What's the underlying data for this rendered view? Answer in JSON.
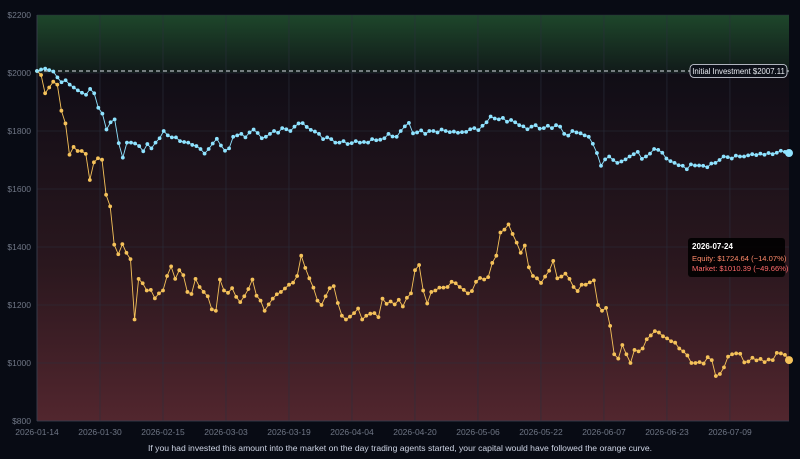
{
  "colors": {
    "background": "#080b14",
    "equity": "#8fe3ff",
    "market": "#f5c25a",
    "grid": "#2a2f3d",
    "tick": "#6f7685",
    "tooltip_date": "#ffffff",
    "tooltip_equity": "#ff8a6a",
    "tooltip_market": "#ff6b6b"
  },
  "caption": "If you had invested this amount into the market on the day trading agents started, your capital would have followed the orange curve.",
  "reference_label": "Initial Investment $2007.11",
  "tooltip": {
    "date": "2026-07-24",
    "equity_text": "Equity: $1724.64 (−14.07%)",
    "market_text": "Market: $1010.39 (−49.66%)"
  },
  "chart_data": {
    "type": "line",
    "title": "",
    "xlabel": "",
    "ylabel": "",
    "ylim": [
      800,
      2200
    ],
    "yticks": [
      800,
      1000,
      1200,
      1400,
      1600,
      1800,
      2000,
      2200
    ],
    "ytick_labels": [
      "$800",
      "$1000",
      "$1200",
      "$1400",
      "$1600",
      "$1800",
      "$2000",
      "$2200"
    ],
    "x_start": "2026-01-14",
    "x_end": "2026-07-24",
    "xticks": [
      "2026-01-14",
      "2026-01-30",
      "2026-02-15",
      "2026-03-03",
      "2026-03-19",
      "2026-04-04",
      "2026-04-20",
      "2026-05-06",
      "2026-05-22",
      "2026-06-07",
      "2026-06-23",
      "2026-07-09"
    ],
    "reference_line": {
      "value": 2007.11,
      "label": "Initial Investment $2007.11"
    },
    "grid": true,
    "background_bands": "green above $2000, red below",
    "series": [
      {
        "name": "Equity",
        "color": "#8fe3ff",
        "values": [
          2007,
          2012,
          2015,
          2010,
          2005,
          1985,
          1968,
          1975,
          1960,
          1950,
          1940,
          1932,
          1925,
          1945,
          1930,
          1880,
          1860,
          1805,
          1830,
          1840,
          1758,
          1708,
          1760,
          1760,
          1757,
          1748,
          1730,
          1755,
          1740,
          1760,
          1775,
          1800,
          1785,
          1778,
          1778,
          1765,
          1762,
          1760,
          1752,
          1748,
          1738,
          1722,
          1738,
          1757,
          1773,
          1750,
          1732,
          1740,
          1780,
          1785,
          1790,
          1778,
          1795,
          1805,
          1793,
          1775,
          1780,
          1790,
          1800,
          1794,
          1810,
          1806,
          1800,
          1815,
          1826,
          1827,
          1814,
          1804,
          1798,
          1790,
          1772,
          1778,
          1772,
          1760,
          1760,
          1765,
          1755,
          1758,
          1765,
          1760,
          1762,
          1760,
          1772,
          1768,
          1770,
          1775,
          1790,
          1781,
          1780,
          1800,
          1816,
          1828,
          1792,
          1795,
          1802,
          1790,
          1800,
          1800,
          1795,
          1805,
          1800,
          1796,
          1798,
          1794,
          1796,
          1797,
          1806,
          1810,
          1803,
          1818,
          1830,
          1850,
          1843,
          1840,
          1845,
          1832,
          1838,
          1830,
          1820,
          1816,
          1806,
          1815,
          1820,
          1808,
          1810,
          1818,
          1810,
          1820,
          1815,
          1790,
          1784,
          1800,
          1795,
          1792,
          1785,
          1780,
          1756,
          1724,
          1680,
          1702,
          1712,
          1700,
          1690,
          1695,
          1702,
          1712,
          1720,
          1728,
          1704,
          1712,
          1722,
          1738,
          1735,
          1725,
          1705,
          1696,
          1690,
          1682,
          1680,
          1668,
          1685,
          1681,
          1681,
          1680,
          1675,
          1688,
          1690,
          1700,
          1712,
          1710,
          1705,
          1715,
          1712,
          1712,
          1716,
          1720,
          1717,
          1722,
          1718,
          1724,
          1720,
          1725,
          1732,
          1728,
          1724
        ]
      },
      {
        "name": "Market",
        "color": "#f5c25a",
        "values": [
          2007,
          1993,
          1930,
          1950,
          1970,
          1960,
          1870,
          1826,
          1718,
          1745,
          1731,
          1731,
          1721,
          1631,
          1692,
          1706,
          1701,
          1580,
          1540,
          1408,
          1375,
          1410,
          1380,
          1358,
          1150,
          1290,
          1275,
          1250,
          1252,
          1223,
          1240,
          1250,
          1300,
          1333,
          1290,
          1320,
          1303,
          1245,
          1238,
          1290,
          1262,
          1245,
          1230,
          1185,
          1180,
          1288,
          1250,
          1242,
          1258,
          1228,
          1210,
          1230,
          1255,
          1288,
          1232,
          1215,
          1180,
          1202,
          1222,
          1237,
          1245,
          1257,
          1270,
          1277,
          1300,
          1370,
          1328,
          1292,
          1260,
          1215,
          1200,
          1230,
          1258,
          1265,
          1207,
          1163,
          1150,
          1160,
          1172,
          1188,
          1150,
          1163,
          1170,
          1172,
          1158,
          1222,
          1204,
          1212,
          1202,
          1218,
          1195,
          1225,
          1240,
          1320,
          1338,
          1250,
          1205,
          1245,
          1250,
          1260,
          1260,
          1262,
          1280,
          1275,
          1262,
          1252,
          1240,
          1248,
          1280,
          1293,
          1288,
          1296,
          1345,
          1370,
          1450,
          1460,
          1478,
          1445,
          1415,
          1380,
          1405,
          1330,
          1300,
          1292,
          1276,
          1298,
          1318,
          1352,
          1292,
          1298,
          1308,
          1290,
          1262,
          1248,
          1270,
          1270,
          1278,
          1285,
          1200,
          1180,
          1190,
          1128,
          1030,
          1015,
          1062,
          1030,
          1000,
          1045,
          1040,
          1050,
          1082,
          1095,
          1110,
          1105,
          1092,
          1085,
          1075,
          1070,
          1050,
          1040,
          1026,
          1000,
          1000,
          1003,
          998,
          1020,
          1010,
          955,
          962,
          985,
          1022,
          1030,
          1033,
          1032,
          1002,
          1005,
          1018,
          1009,
          1014,
          1003,
          1012,
          1010,
          1035,
          1033,
          1028,
          1010
        ]
      }
    ]
  }
}
